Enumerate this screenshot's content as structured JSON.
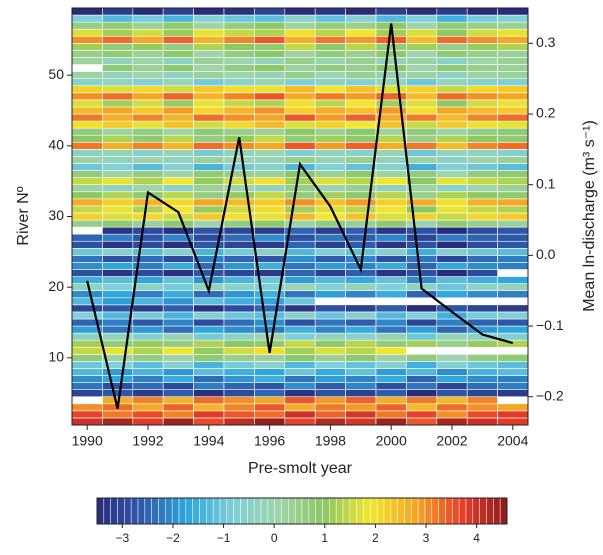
{
  "chart_data": {
    "type": "heatmap",
    "x_label": "Pre-smolt year",
    "y_label": "River Nº",
    "y2_label": "Mean ln-discharge (m³ s⁻¹)",
    "x": [
      1990,
      1991,
      1992,
      1993,
      1994,
      1995,
      1996,
      1997,
      1998,
      1999,
      2000,
      2001,
      2002,
      2003,
      2004
    ],
    "y": [
      1,
      2,
      3,
      4,
      5,
      6,
      7,
      8,
      9,
      10,
      11,
      12,
      13,
      14,
      15,
      16,
      17,
      18,
      19,
      20,
      21,
      22,
      23,
      24,
      25,
      26,
      27,
      28,
      29,
      30,
      31,
      32,
      33,
      34,
      35,
      36,
      37,
      38,
      39,
      40,
      41,
      42,
      43,
      44,
      45,
      46,
      47,
      48,
      49,
      50,
      51,
      52,
      53,
      54,
      55,
      56,
      57,
      58,
      59
    ],
    "z": [
      [
        4,
        4.3,
        3.8,
        4.4,
        3.6,
        4.1,
        4.5,
        3.7,
        4.2,
        3.9,
        4.4,
        3.5,
        4.3,
        4,
        3.8
      ],
      [
        3.7,
        3.2,
        3.6,
        3.1,
        3.8,
        3.5,
        3.3,
        4,
        3.4,
        3.9,
        3.2,
        3.7,
        3,
        3.6,
        3.8
      ],
      [
        3,
        3.3,
        2.8,
        3.4,
        2.6,
        3.1,
        3.5,
        2.7,
        3.2,
        2.9,
        3.4,
        2.5,
        3.3,
        3,
        2.8
      ],
      [
        null,
        2.7,
        3.1,
        2.6,
        3.3,
        3,
        2.8,
        3.5,
        2.9,
        3.4,
        2.7,
        3.2,
        2.5,
        3.1,
        null
      ],
      [
        -3,
        -2.7,
        -3.2,
        -2.6,
        -3.4,
        -2.9,
        -2.5,
        -3.3,
        -2.8,
        -3.1,
        -2.6,
        -3.5,
        -2.7,
        -3,
        -3.2
      ],
      [
        -2.3,
        -2.8,
        -2.4,
        -2.9,
        -2.2,
        -2.5,
        -2.7,
        -2,
        -2.6,
        -2.1,
        -2.8,
        -2.3,
        -3,
        -2.4,
        -2.2
      ],
      [
        -2,
        -1.7,
        -2.2,
        -1.6,
        -2.4,
        -1.9,
        -1.5,
        -2.3,
        -1.8,
        -2.1,
        -1.6,
        -2.5,
        -1.7,
        -2,
        -2.2
      ],
      [
        -1.3,
        -1.8,
        -1.4,
        -1.9,
        -1.2,
        -1.5,
        -1.7,
        -1,
        -1.6,
        -1.1,
        -1.8,
        -1.3,
        -2,
        -1.4,
        -1.2
      ],
      [
        -1,
        -0.7,
        -1.2,
        -0.6,
        -1.4,
        -0.9,
        -0.5,
        -1.3,
        -0.8,
        -1.1,
        -0.6,
        -1.5,
        -0.7,
        -1,
        -1.2
      ],
      [
        0.7,
        0.2,
        0.6,
        0.1,
        0.8,
        0.5,
        0.3,
        1,
        0.4,
        0.9,
        0.2,
        0.7,
        0,
        0.6,
        0.8
      ],
      [
        1.5,
        1.8,
        1.3,
        1.9,
        1.1,
        1.6,
        2,
        1.2,
        1.7,
        1.4,
        1.9,
        null,
        null,
        null,
        null
      ],
      [
        1.2,
        0.7,
        1.1,
        0.6,
        1.3,
        1,
        0.8,
        1.5,
        0.9,
        1.4,
        0.7,
        1.2,
        0.5,
        1.1,
        1.3
      ],
      [
        -0.5,
        -0.2,
        -0.7,
        -0.1,
        -0.9,
        -0.4,
        0,
        -0.8,
        -0.3,
        -0.6,
        -0.1,
        -1,
        -0.2,
        -0.5,
        -0.7
      ],
      [
        -1.8,
        -2.3,
        -1.9,
        -2.4,
        -1.7,
        -2,
        -2.2,
        -1.5,
        -2.1,
        -1.6,
        -2.3,
        -1.8,
        -2.5,
        -1.9,
        -1.7
      ],
      [
        -2.5,
        -2.2,
        -2.7,
        -2.1,
        -2.9,
        -2.4,
        -2,
        -2.8,
        -2.3,
        -2.6,
        -2.1,
        -3,
        -2.2,
        -2.5,
        -2.7
      ],
      [
        -0.8,
        -1.3,
        -0.9,
        -1.4,
        -0.7,
        -1,
        -1.2,
        -0.5,
        -1.1,
        -0.6,
        -1.3,
        -0.8,
        -1.5,
        -0.9,
        -0.7
      ],
      [
        -3,
        -2.7,
        -3.2,
        -2.6,
        -3.4,
        -2.9,
        -2.5,
        -3.3,
        -2.8,
        -3.1,
        -2.6,
        -3.5,
        -2.7,
        -3,
        -3.2
      ],
      [
        -1.3,
        -1.8,
        -1.4,
        -1.9,
        -1.2,
        -1.5,
        -1.7,
        -1,
        null,
        null,
        null,
        null,
        null,
        null,
        null
      ],
      [
        -2,
        -1.7,
        -2.2,
        -1.6,
        -2.4,
        -1.9,
        -1.5,
        -2.3,
        -1.8,
        -2.1,
        -1.6,
        -2.5,
        -1.7,
        -2,
        -2.2
      ],
      [
        -0.3,
        -0.8,
        -0.4,
        -0.9,
        -0.2,
        -0.5,
        -0.7,
        0,
        -0.6,
        -0.1,
        -0.8,
        -0.3,
        -1,
        -0.4,
        -0.2
      ],
      [
        -1.5,
        -1.2,
        -1.7,
        -1.1,
        -1.9,
        -1.4,
        -1,
        -1.8,
        -1.3,
        -1.6,
        -1.1,
        -2,
        -1.2,
        -1.5,
        -1.7
      ],
      [
        -2.8,
        -3.3,
        -2.9,
        -3.4,
        -2.7,
        -3,
        -3.2,
        -2.5,
        -3.1,
        -2.6,
        -3.3,
        -2.8,
        -3.5,
        -2.9,
        null
      ],
      [
        -2,
        -1.7,
        -2.2,
        -1.6,
        -2.4,
        -1.9,
        -1.5,
        -2.3,
        -1.8,
        -2.1,
        -1.6,
        -2.5,
        -1.7,
        -2,
        -2.2
      ],
      [
        -2.3,
        -2.8,
        -2.4,
        -2.9,
        -2.2,
        -2.5,
        -2.7,
        -2,
        -2.6,
        -2.1,
        -2.8,
        -2.3,
        -3,
        -2.4,
        -2.2
      ],
      [
        -1,
        -0.7,
        -1.2,
        -0.6,
        -1.4,
        -0.9,
        -0.5,
        -1.3,
        -0.8,
        -1.1,
        -0.6,
        -1.5,
        -0.7,
        -1,
        -1.2
      ],
      [
        -2.8,
        -3.3,
        -2.9,
        -3.4,
        -2.7,
        -3,
        -3.2,
        -2.5,
        -3.1,
        -2.6,
        -3.3,
        -2.8,
        -3.5,
        -2.9,
        -2.7
      ],
      [
        -2.5,
        -2.2,
        -2.7,
        -2.1,
        -2.9,
        -2.4,
        -2,
        -2.8,
        -2.3,
        -2.6,
        -2.1,
        -3,
        -2.2,
        -2.5,
        -2.7
      ],
      [
        null,
        -3.3,
        -2.9,
        -3.4,
        -2.7,
        -3,
        -3.2,
        -2.5,
        -3.1,
        -2.6,
        -3.3,
        -2.8,
        -3.5,
        -2.9,
        -2.7
      ],
      [
        0.5,
        0.8,
        0.3,
        0.9,
        0.1,
        0.6,
        1,
        0.2,
        0.7,
        0.4,
        0.9,
        0,
        0.8,
        0.5,
        0.3
      ],
      [
        2.2,
        1.7,
        2.1,
        1.6,
        2.3,
        2,
        1.8,
        2.5,
        1.9,
        2.4,
        1.7,
        2.2,
        1.5,
        2.1,
        2.3
      ],
      [
        1.5,
        1.8,
        1.3,
        1.9,
        1.1,
        1.6,
        2,
        1.2,
        1.7,
        1.4,
        1.9,
        1,
        1.8,
        1.5,
        1.3
      ],
      [
        2.7,
        2.2,
        2.6,
        2.1,
        2.8,
        2.5,
        2.3,
        3,
        2.4,
        2.9,
        2.2,
        2.7,
        2,
        2.6,
        2.8
      ],
      [
        1,
        1.3,
        0.8,
        1.4,
        0.6,
        1.1,
        1.5,
        0.7,
        1.2,
        0.9,
        1.4,
        0.5,
        1.3,
        1,
        0.8
      ],
      [
        0.2,
        -0.3,
        0.1,
        -0.4,
        0.3,
        0,
        -0.2,
        0.5,
        -0.1,
        0.4,
        -0.3,
        0.2,
        -0.5,
        0.1,
        0.3
      ],
      [
        1.5,
        1.8,
        1.3,
        1.9,
        1.1,
        1.6,
        2,
        1.2,
        1.7,
        1.4,
        1.9,
        1,
        1.8,
        1.5,
        1.3
      ],
      [
        0.7,
        0.2,
        0.6,
        0.1,
        0.8,
        0.5,
        0.3,
        1,
        0.4,
        0.9,
        0.2,
        0.7,
        0,
        0.6,
        0.8
      ],
      [
        -1,
        -0.7,
        -1.2,
        -0.6,
        -1.4,
        -0.9,
        -0.5,
        -1.3,
        -0.8,
        -1.1,
        -0.6,
        -1.5,
        -0.7,
        -1,
        -1.2
      ],
      [
        0.2,
        -0.3,
        0.1,
        -0.4,
        0.3,
        0,
        -0.2,
        0.5,
        -0.1,
        0.4,
        -0.3,
        0.2,
        -0.5,
        0.1,
        0.3
      ],
      [
        -0.5,
        -0.2,
        -0.7,
        -0.1,
        -0.9,
        -0.4,
        0,
        -0.8,
        -0.3,
        -0.6,
        -0.1,
        -1,
        -0.2,
        -0.5,
        -0.7
      ],
      [
        3.2,
        2.7,
        3.1,
        2.6,
        3.3,
        3,
        2.8,
        3.5,
        2.9,
        3.4,
        2.7,
        3.2,
        2.5,
        3.1,
        3.3
      ],
      [
        1,
        1.3,
        0.8,
        1.4,
        0.6,
        1.1,
        1.5,
        0.7,
        1.2,
        0.9,
        1.4,
        0.5,
        1.3,
        1,
        0.8
      ],
      [
        0.7,
        0.2,
        0.6,
        0.1,
        0.8,
        0.5,
        0.3,
        1,
        0.4,
        0.9,
        0.2,
        0.7,
        0,
        0.6,
        0.8
      ],
      [
        2,
        2.3,
        1.8,
        2.4,
        1.6,
        2.1,
        2.5,
        1.7,
        2.2,
        1.9,
        2.4,
        1.5,
        2.3,
        2,
        1.8
      ],
      [
        3.2,
        2.7,
        3.1,
        2.6,
        3.3,
        3,
        2.8,
        3.5,
        2.9,
        3.4,
        2.7,
        3.2,
        2.5,
        3.1,
        3.3
      ],
      [
        2.5,
        2.8,
        2.3,
        2.9,
        2.1,
        2.6,
        3,
        2.2,
        2.7,
        2.4,
        2.9,
        2,
        2.8,
        2.5,
        2.3
      ],
      [
        1.7,
        1.2,
        1.6,
        1.1,
        1.8,
        1.5,
        1.3,
        2,
        1.4,
        1.9,
        1.2,
        1.7,
        1,
        1.6,
        1.8
      ],
      [
        3,
        3.3,
        2.8,
        3.4,
        2.6,
        3.1,
        3.5,
        2.7,
        3.2,
        2.9,
        3.4,
        2.5,
        3.3,
        3,
        2.8
      ],
      [
        2.2,
        1.7,
        2.1,
        1.6,
        2.3,
        2,
        1.8,
        2.5,
        1.9,
        2.4,
        1.7,
        2.2,
        1.5,
        2.1,
        2.3
      ],
      [
        -0.5,
        -0.2,
        -0.7,
        -0.1,
        -0.9,
        -0.4,
        0,
        -0.8,
        -0.3,
        -0.6,
        -0.1,
        -1,
        -0.2,
        -0.5,
        -0.7
      ],
      [
        0.2,
        -0.3,
        0.1,
        -0.4,
        0.3,
        0,
        -0.2,
        0.5,
        -0.1,
        0.4,
        -0.3,
        0.2,
        -0.5,
        0.1,
        0.3
      ],
      [
        null,
        0.8,
        0.3,
        0.9,
        0.1,
        0.6,
        1,
        0.2,
        0.7,
        0.4,
        0.9,
        0,
        0.8,
        0.5,
        0.3
      ],
      [
        0.2,
        -0.3,
        0.1,
        -0.4,
        0.3,
        0,
        -0.2,
        0.5,
        -0.1,
        0.4,
        -0.3,
        0.2,
        -0.5,
        0.1,
        0.3
      ],
      [
        0.5,
        0.8,
        0.3,
        0.9,
        0.1,
        0.6,
        1,
        0.2,
        0.7,
        0.4,
        0.9,
        0,
        0.8,
        0.5,
        0.3
      ],
      [
        1.2,
        0.7,
        1.1,
        0.6,
        1.3,
        1,
        0.8,
        1.5,
        0.9,
        1.4,
        0.7,
        1.2,
        0.5,
        1.1,
        1.3
      ],
      [
        3,
        3.3,
        2.8,
        3.4,
        2.6,
        3.1,
        3.5,
        2.7,
        3.2,
        2.9,
        3.4,
        2.5,
        3.3,
        3,
        2.8
      ],
      [
        1.7,
        1.2,
        1.6,
        1.1,
        1.8,
        1.5,
        1.3,
        2,
        1.4,
        1.9,
        1.2,
        1.7,
        1,
        1.6,
        1.8
      ],
      [
        0.5,
        0.8,
        0.3,
        0.9,
        0.1,
        0.6,
        1,
        0.2,
        0.7,
        0.4,
        0.9,
        0,
        0.8,
        0.5,
        0.3
      ],
      [
        -0.8,
        -1.3,
        -0.9,
        -1.4,
        -0.7,
        -1,
        -1.2,
        -0.5,
        -1.1,
        -0.6,
        -1.3,
        -0.8,
        -1.5,
        -0.9,
        -0.7
      ],
      [
        -3.5,
        -3.2,
        -3.5,
        -3.1,
        -3.5,
        -3.4,
        -3,
        -3.5,
        -3.3,
        -3.5,
        -3.1,
        -3.5,
        -3.2,
        -3.5,
        -3.5
      ]
    ],
    "series": [
      {
        "color": "#000000",
        "axis": "y2",
        "values": [
          -0.036,
          -0.217,
          0.089,
          0.061,
          -0.05,
          0.167,
          -0.138,
          0.129,
          0.069,
          -0.02,
          0.328,
          -0.047,
          -0.08,
          -0.112,
          -0.124
        ]
      }
    ],
    "xlim": [
      1989.5,
      2004.5
    ],
    "xticks": [
      1990,
      1992,
      1994,
      1996,
      1998,
      2000,
      2002,
      2004
    ],
    "ylim": [
      0.5,
      59.5
    ],
    "yticks": [
      10,
      20,
      30,
      40,
      50
    ],
    "y2lim": [
      -0.24,
      0.35
    ],
    "y2ticks": [
      {
        "value": -0.2,
        "label": "−0.2"
      },
      {
        "value": -0.1,
        "label": "−0.1"
      },
      {
        "value": 0,
        "label": "0.0"
      },
      0.1,
      0.2,
      0.3
    ],
    "clim": [
      -3.5,
      4.6
    ],
    "cticks": [
      {
        "value": -3,
        "label": "−3"
      },
      {
        "value": -2,
        "label": "−2"
      },
      {
        "value": -1,
        "label": "−1"
      },
      0,
      1,
      2,
      3,
      4
    ],
    "colormap": [
      "#282a7a",
      "#2f5cad",
      "#2fa6dc",
      "#7fd0d8",
      "#9fd4a8",
      "#8cc864",
      "#f2e62c",
      "#f5a623",
      "#e8402a",
      "#8b1a1a"
    ]
  }
}
